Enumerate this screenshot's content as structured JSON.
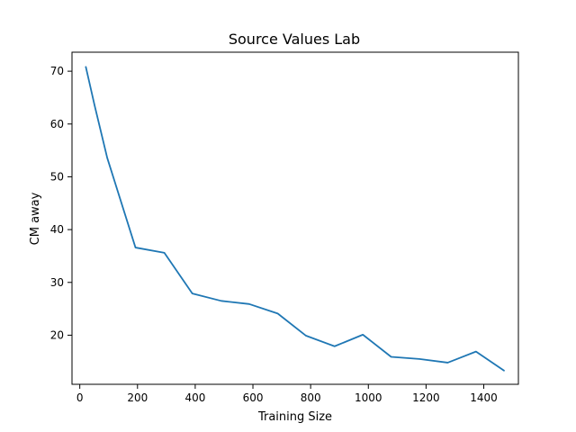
{
  "chart_data": {
    "type": "line",
    "title": "Source Values Lab",
    "xlabel": "Training Size",
    "ylabel": "CM away",
    "xlim": [
      -27,
      1520
    ],
    "ylim": [
      10.7,
      73.6
    ],
    "x_ticks": [
      0,
      200,
      400,
      600,
      800,
      1000,
      1200,
      1400
    ],
    "y_ticks": [
      20,
      30,
      40,
      50,
      60,
      70
    ],
    "grid": false,
    "series": [
      {
        "color": "#1f77b4",
        "points": [
          {
            "x": 21,
            "y": 70.8
          },
          {
            "x": 51,
            "y": 63.6
          },
          {
            "x": 95,
            "y": 53.6
          },
          {
            "x": 193,
            "y": 36.6
          },
          {
            "x": 293,
            "y": 35.6
          },
          {
            "x": 390,
            "y": 27.9
          },
          {
            "x": 490,
            "y": 26.5
          },
          {
            "x": 587,
            "y": 25.9
          },
          {
            "x": 686,
            "y": 24.1
          },
          {
            "x": 784,
            "y": 19.9
          },
          {
            "x": 883,
            "y": 17.9
          },
          {
            "x": 981,
            "y": 20.1
          },
          {
            "x": 1079,
            "y": 15.9
          },
          {
            "x": 1177,
            "y": 15.5
          },
          {
            "x": 1275,
            "y": 14.8
          },
          {
            "x": 1373,
            "y": 16.9
          },
          {
            "x": 1470,
            "y": 13.3
          }
        ]
      }
    ]
  }
}
